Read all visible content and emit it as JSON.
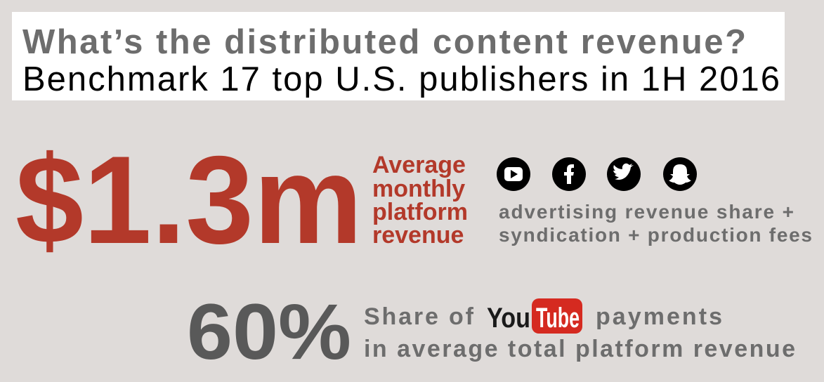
{
  "header": {
    "title": "What’s the distributed content revenue?",
    "subtitle": "Benchmark 17 top U.S. publishers in 1H 2016"
  },
  "stat1": {
    "value_text": "$1.3m",
    "label_lines": [
      "Average",
      "monthly",
      "platform",
      "revenue"
    ],
    "note_lines": [
      "advertising revenue share +",
      "syndication + production fees"
    ]
  },
  "stat2": {
    "value_text": "60%",
    "line1_start": "Share of",
    "logo": [
      "You",
      "Tube"
    ],
    "line1_end": "payments",
    "line2": "in average total platform revenue"
  }
}
